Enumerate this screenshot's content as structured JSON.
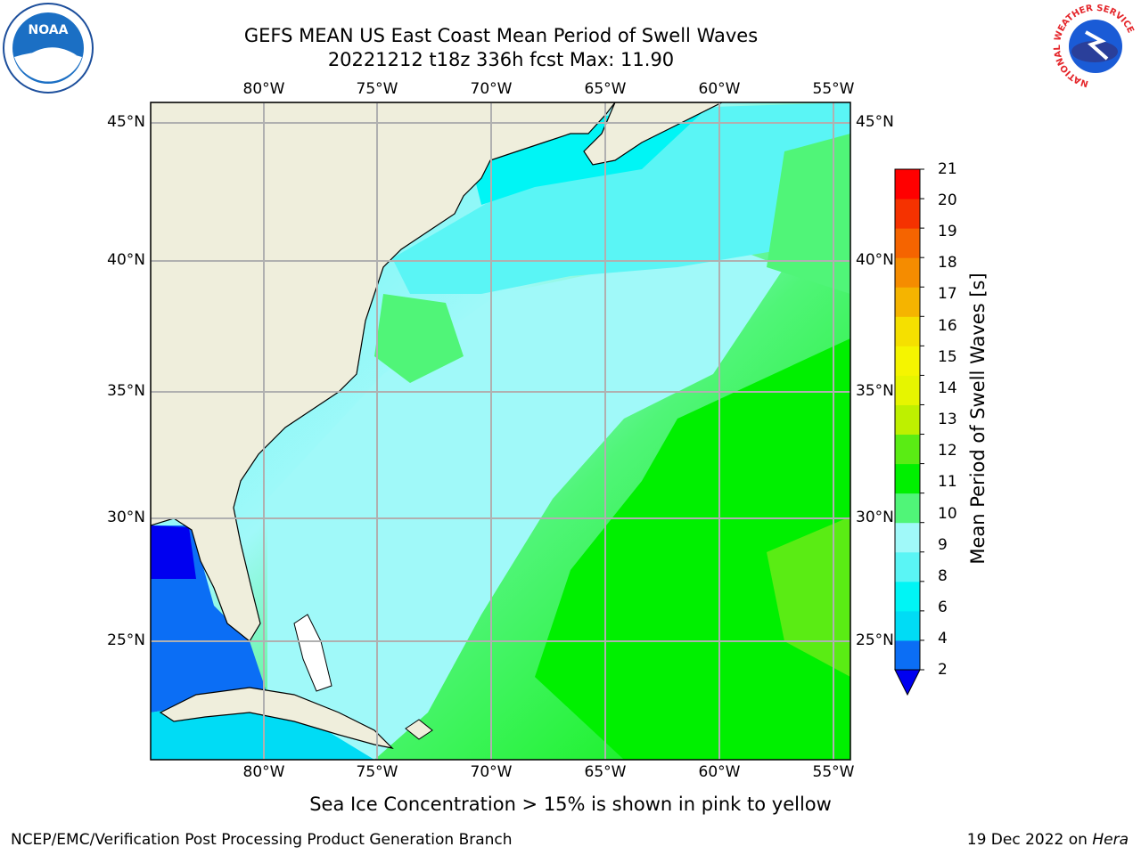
{
  "titles": {
    "line1": "GEFS MEAN US East Coast Mean Period of Swell Waves",
    "line2": "20221212 t18z 336h fcst   Max: 11.90"
  },
  "map": {
    "lon_labels": [
      "80°W",
      "75°W",
      "70°W",
      "65°W",
      "60°W",
      "55°W"
    ],
    "lat_labels": [
      "45°N",
      "40°N",
      "35°N",
      "30°N",
      "25°N"
    ],
    "lon_range": [
      -85,
      -54
    ],
    "lat_range": [
      20.5,
      46
    ],
    "grid": true,
    "colors": {
      "land": "#efeedc",
      "grid": "#b0b0b0",
      "coast": "#000000"
    }
  },
  "colorbar": {
    "title": "Mean Period of Swell Waves [s]",
    "ticks": [
      "21",
      "20",
      "19",
      "18",
      "17",
      "16",
      "15",
      "14",
      "13",
      "12",
      "11",
      "10",
      "9",
      "8",
      "6",
      "4",
      "2"
    ],
    "bins": [
      {
        "label": "2-4",
        "color": "#0b6ef5"
      },
      {
        "label": "4-6",
        "color": "#00dcf5"
      },
      {
        "label": "6-8",
        "color": "#00f5f5"
      },
      {
        "label": "8-9",
        "color": "#5af5f5"
      },
      {
        "label": "9-10",
        "color": "#a0f9f9"
      },
      {
        "label": "10-11",
        "color": "#50f578"
      },
      {
        "label": "11-12",
        "color": "#00f000"
      },
      {
        "label": "12-13",
        "color": "#5aec14"
      },
      {
        "label": "13-14",
        "color": "#bef000"
      },
      {
        "label": "14-15",
        "color": "#e6f500"
      },
      {
        "label": "15-16",
        "color": "#f5f500"
      },
      {
        "label": "16-17",
        "color": "#f5e000"
      },
      {
        "label": "17-18",
        "color": "#f5b400"
      },
      {
        "label": "18-19",
        "color": "#f58c00"
      },
      {
        "label": "19-20",
        "color": "#f56400"
      },
      {
        "label": "20-21",
        "color": "#f53200"
      },
      {
        "label": "21+",
        "color": "#ff0000"
      }
    ],
    "under_color": "#0000f0"
  },
  "note": "Sea Ice Concentration > 15% is shown in pink to yellow",
  "footer": {
    "left": "NCEP/EMC/Verification Post Processing Product Generation Branch",
    "right_prefix": "19 Dec 2022 on ",
    "right_host": "Hera"
  },
  "logos": {
    "noaa": "NOAA",
    "nws_ring": "NATIONAL WEATHER SERVICE"
  }
}
